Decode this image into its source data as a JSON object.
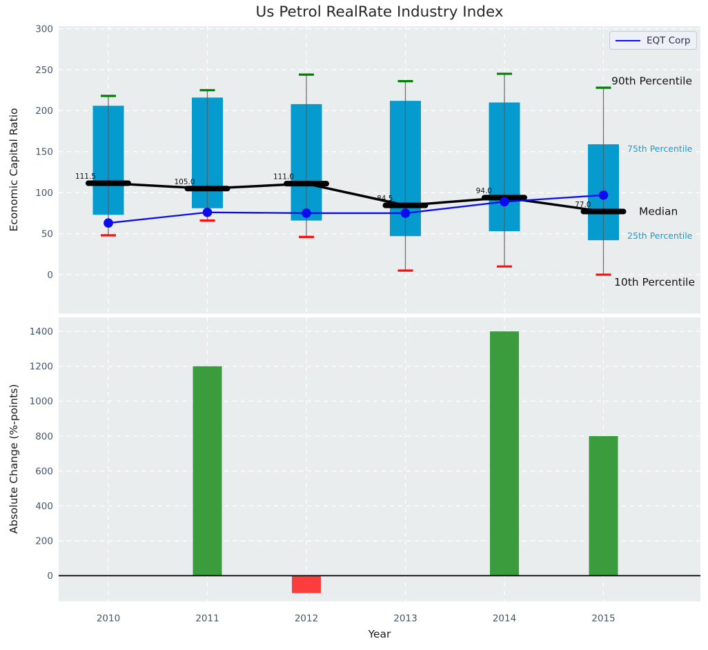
{
  "title": "Us Petrol RealRate Industry Index",
  "colors": {
    "panel_bg": "#e9edee",
    "grid": "#ffffff",
    "box_fill": "#059bce",
    "whisker": "#5a5a5a",
    "p90_cap": "#007f00",
    "p10_cap": "#fd0d0d",
    "median": "#000000",
    "eqt_line": "#0b0bf0",
    "bar_positive": "#3b9c3e",
    "bar_negative": "#fb3d3d",
    "tick_text": "#44566b",
    "cyan_label": "#1b9bce"
  },
  "chart_data": [
    {
      "type": "box-line",
      "panel": "top",
      "title": "Us Petrol RealRate Industry Index",
      "ylabel": "Economic Capital Ratio",
      "yticks": [
        0,
        50,
        100,
        150,
        200,
        250,
        300
      ],
      "ylim": [
        -47.5,
        303
      ],
      "grid": true,
      "categories": [
        "2010",
        "2011",
        "2012",
        "2013",
        "2014",
        "2015"
      ],
      "series": {
        "p90": [
          218,
          225,
          244,
          236,
          245,
          228
        ],
        "p75": [
          206,
          216,
          208,
          212,
          210,
          159
        ],
        "median": [
          111.5,
          105.0,
          111.0,
          84.5,
          94.0,
          77.0
        ],
        "p25": [
          73,
          81,
          66,
          47,
          53,
          42
        ],
        "p10": [
          48,
          66,
          46,
          5,
          10,
          0
        ],
        "eqt_corp": [
          63,
          76,
          75,
          75,
          89,
          97
        ]
      },
      "median_labels": [
        "111.5",
        "105.0",
        "111.0",
        "84.5",
        "94.0",
        "77.0"
      ],
      "legend": {
        "label": "EQT Corp",
        "position": "upper right"
      },
      "annotations": [
        {
          "text": "90th Percentile",
          "x": 886,
          "v": 236,
          "style": "big"
        },
        {
          "text": "75th Percentile",
          "x": 909,
          "v": 153,
          "style": "small"
        },
        {
          "text": "Median",
          "x": 926,
          "v": 77,
          "style": "big"
        },
        {
          "text": "25th Percentile",
          "x": 909,
          "v": 47,
          "style": "small"
        },
        {
          "text": "10th Percentile",
          "x": 890,
          "v": -9,
          "style": "big"
        }
      ]
    },
    {
      "type": "bar",
      "panel": "bottom",
      "ylabel": "Absolute Change (%-points)",
      "xlabel": "Year",
      "yticks": [
        0,
        200,
        400,
        600,
        800,
        1000,
        1200,
        1400
      ],
      "ylim": [
        -147,
        1480
      ],
      "grid": true,
      "categories": [
        "2010",
        "2011",
        "2012",
        "2013",
        "2014",
        "2015"
      ],
      "values": [
        0,
        1200,
        -100,
        0,
        1400,
        800
      ]
    }
  ]
}
